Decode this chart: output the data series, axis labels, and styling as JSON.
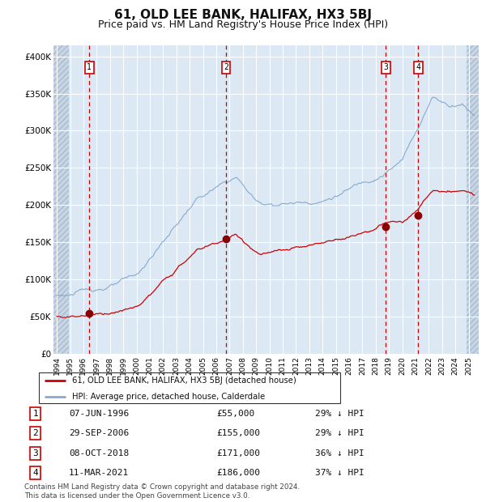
{
  "title": "61, OLD LEE BANK, HALIFAX, HX3 5BJ",
  "subtitle": "Price paid vs. HM Land Registry's House Price Index (HPI)",
  "title_fontsize": 11,
  "subtitle_fontsize": 9,
  "ylabel_ticks": [
    "£0",
    "£50K",
    "£100K",
    "£150K",
    "£200K",
    "£250K",
    "£300K",
    "£350K",
    "£400K"
  ],
  "ytick_values": [
    0,
    50000,
    100000,
    150000,
    200000,
    250000,
    300000,
    350000,
    400000
  ],
  "ylim": [
    0,
    415000
  ],
  "xlim_start": 1993.75,
  "xlim_end": 2025.75,
  "background_color": "#dce9f5",
  "hatch_left_end": 1994.92,
  "hatch_right_start": 2024.83,
  "grid_color": "#ffffff",
  "sale_dates": [
    1996.44,
    2006.74,
    2018.77,
    2021.19
  ],
  "sale_prices": [
    55000,
    155000,
    171000,
    186000
  ],
  "sale_labels": [
    "1",
    "2",
    "3",
    "4"
  ],
  "red_line_color": "#cc0000",
  "blue_line_color": "#88aacc",
  "dot_color": "#880000",
  "vline_color": "#cc0000",
  "legend_red_label": "61, OLD LEE BANK, HALIFAX, HX3 5BJ (detached house)",
  "legend_blue_label": "HPI: Average price, detached house, Calderdale",
  "table_rows": [
    [
      "1",
      "07-JUN-1996",
      "£55,000",
      "29% ↓ HPI"
    ],
    [
      "2",
      "29-SEP-2006",
      "£155,000",
      "29% ↓ HPI"
    ],
    [
      "3",
      "08-OCT-2018",
      "£171,000",
      "36% ↓ HPI"
    ],
    [
      "4",
      "11-MAR-2021",
      "£186,000",
      "37% ↓ HPI"
    ]
  ],
  "footer": "Contains HM Land Registry data © Crown copyright and database right 2024.\nThis data is licensed under the Open Government Licence v3.0.",
  "x_tick_years": [
    1994,
    1995,
    1996,
    1997,
    1998,
    1999,
    2000,
    2001,
    2002,
    2003,
    2004,
    2005,
    2006,
    2007,
    2008,
    2009,
    2010,
    2011,
    2012,
    2013,
    2014,
    2015,
    2016,
    2017,
    2018,
    2019,
    2020,
    2021,
    2022,
    2023,
    2024,
    2025
  ]
}
